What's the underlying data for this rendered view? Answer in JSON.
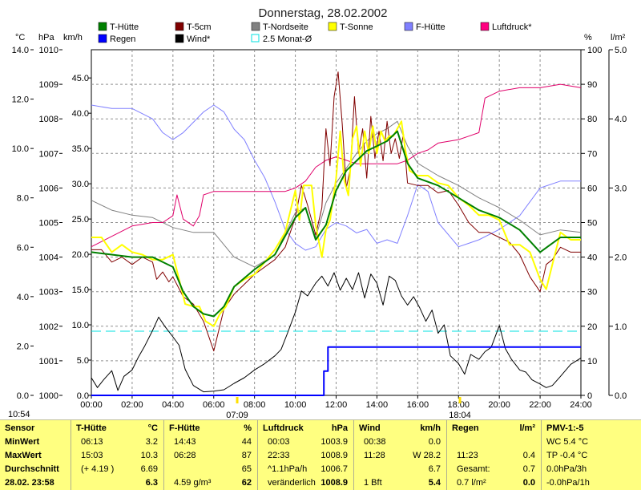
{
  "chart_data": {
    "type": "line",
    "title": "Donnerstag, 28.02.2002",
    "x_ticks": [
      "00:00",
      "02:00",
      "04:00",
      "06:00",
      "08:00",
      "10:00",
      "12:00",
      "14:00",
      "16:00",
      "18:00",
      "20:00",
      "22:00",
      "24:00"
    ],
    "xlim": [
      0,
      24
    ],
    "axes": {
      "temp": {
        "unit": "°C",
        "range": [
          0,
          14
        ],
        "ticks": [
          "0.0",
          "2.0",
          "4.0",
          "6.0",
          "8.0",
          "10.0",
          "12.0",
          "14.0"
        ]
      },
      "pressure": {
        "unit": "hPa",
        "range": [
          1000,
          1010
        ],
        "ticks": [
          "1000",
          "1001",
          "1002",
          "1003",
          "1004",
          "1005",
          "1006",
          "1007",
          "1008",
          "1009",
          "1010"
        ]
      },
      "wind": {
        "unit": "km/h",
        "range": [
          0,
          49
        ],
        "ticks": [
          "0.0",
          "5.0",
          "10.0",
          "15.0",
          "20.0",
          "25.0",
          "30.0",
          "35.0",
          "40.0",
          "45.0"
        ]
      },
      "humidity": {
        "unit": "%",
        "range": [
          0,
          100
        ],
        "ticks": [
          "0",
          "10",
          "20",
          "30",
          "40",
          "50",
          "60",
          "70",
          "80",
          "90",
          "100"
        ]
      },
      "rain": {
        "unit": "l/m²",
        "range": [
          0,
          5
        ],
        "ticks": [
          "0.0",
          "1.0",
          "2.0",
          "3.0",
          "4.0",
          "5.0"
        ]
      }
    },
    "legend": [
      {
        "name": "T-Hütte",
        "color": "#008000",
        "shape": "box"
      },
      {
        "name": "T-5cm",
        "color": "#800000",
        "shape": "box"
      },
      {
        "name": "T-Nordseite",
        "color": "#808080",
        "shape": "box"
      },
      {
        "name": "T-Sonne",
        "color": "#ffff00",
        "shape": "box"
      },
      {
        "name": "F-Hütte",
        "color": "#8080ff",
        "shape": "box"
      },
      {
        "name": "Luftdruck*",
        "color": "#ff0080",
        "shape": "box"
      },
      {
        "name": "Regen",
        "color": "#0000ff",
        "shape": "box"
      },
      {
        "name": "Wind*",
        "color": "#000000",
        "shape": "box"
      },
      {
        "name": "2.5 Monat-Ø",
        "color": "#00e0e0",
        "shape": "outline"
      }
    ],
    "series": [
      {
        "name": "T-Hütte",
        "axis": "temp",
        "color": "#008000",
        "width": 2,
        "x": [
          0,
          1,
          2,
          3,
          4,
          4.5,
          5,
          5.5,
          6,
          6.5,
          7,
          8,
          9,
          10,
          10.5,
          11,
          11.5,
          12,
          12.5,
          13,
          13.5,
          14,
          14.5,
          15,
          15.5,
          16,
          17,
          18,
          19,
          20,
          21,
          22,
          22.5,
          23,
          24
        ],
        "y": [
          5.8,
          5.7,
          5.6,
          5.6,
          5.2,
          4.2,
          3.6,
          3.3,
          3.2,
          3.6,
          4.4,
          5.1,
          5.7,
          7.2,
          7.6,
          6.3,
          6.9,
          8.3,
          9.1,
          9.5,
          9.9,
          10.1,
          10.3,
          10.7,
          9.4,
          8.8,
          8.5,
          8.0,
          7.5,
          7.2,
          6.7,
          5.8,
          6.1,
          6.4,
          6.4
        ]
      },
      {
        "name": "T-5cm",
        "axis": "temp",
        "color": "#800000",
        "width": 1,
        "x": [
          0,
          0.5,
          1,
          1.5,
          2,
          2.5,
          3,
          3.2,
          3.5,
          3.8,
          4,
          4.5,
          5,
          5.5,
          6,
          6.5,
          7,
          7.5,
          8,
          9,
          9.5,
          10,
          10.3,
          10.6,
          11,
          11.3,
          11.5,
          11.7,
          11.9,
          12.1,
          12.3,
          12.5,
          12.7,
          12.9,
          13.1,
          13.3,
          13.5,
          13.7,
          13.9,
          14.1,
          14.3,
          14.5,
          14.7,
          14.9,
          15.1,
          15.3,
          15.5,
          16,
          16.5,
          17,
          17.5,
          18,
          18.5,
          19,
          19.5,
          20,
          20.5,
          21,
          21.5,
          22,
          22.3,
          22.6,
          23,
          23.5,
          24
        ],
        "y": [
          5.9,
          5.9,
          5.4,
          5.6,
          5.3,
          5.6,
          5.4,
          4.7,
          5.0,
          4.6,
          4.8,
          4.0,
          3.7,
          3.0,
          1.8,
          3.5,
          4.1,
          4.5,
          4.9,
          5.5,
          6.0,
          7.2,
          8.5,
          7.7,
          6.5,
          7.6,
          10.8,
          9.3,
          12.1,
          13.1,
          11.0,
          8.4,
          9.2,
          12.1,
          9.8,
          10.8,
          8.8,
          11.3,
          9.6,
          10.7,
          9.5,
          11.1,
          9.8,
          10.4,
          9.6,
          10.6,
          8.6,
          8.5,
          8.5,
          8.2,
          8.3,
          7.7,
          7.0,
          6.6,
          6.6,
          6.4,
          6.2,
          5.7,
          4.8,
          4.2,
          5.3,
          5.5,
          6.0,
          5.8,
          5.8
        ]
      },
      {
        "name": "T-Nordseite",
        "axis": "temp",
        "color": "#808080",
        "width": 1,
        "x": [
          0,
          1,
          2,
          3,
          4,
          5,
          6,
          7,
          8,
          9,
          10,
          10.5,
          11,
          11.5,
          12,
          12.5,
          13,
          13.5,
          14,
          14.5,
          15,
          15.5,
          16,
          17,
          18,
          19,
          20,
          21,
          22,
          23,
          24
        ],
        "y": [
          7.9,
          7.5,
          7.3,
          7.2,
          6.8,
          6.6,
          6.6,
          5.6,
          5.2,
          5.7,
          7.4,
          7.6,
          6.4,
          7.8,
          8.6,
          9.2,
          9.8,
          10.3,
          10.6,
          10.8,
          11.1,
          10.1,
          9.4,
          8.9,
          8.5,
          8.0,
          7.6,
          7.1,
          6.5,
          6.7,
          6.6
        ]
      },
      {
        "name": "T-Sonne",
        "axis": "temp",
        "color": "#ffff00",
        "width": 2,
        "x": [
          0,
          0.5,
          1,
          1.5,
          2,
          2.5,
          3,
          3.5,
          4,
          4.3,
          4.6,
          5,
          5.3,
          5.6,
          6,
          6.3,
          6.6,
          7,
          7.5,
          8,
          8.5,
          9,
          9.5,
          10,
          10.2,
          10.4,
          10.6,
          10.8,
          11,
          11.3,
          11.5,
          11.7,
          12,
          12.2,
          12.4,
          12.6,
          12.8,
          13,
          13.2,
          13.4,
          13.6,
          13.8,
          14,
          14.2,
          14.4,
          14.6,
          14.8,
          15,
          15.2,
          15.4,
          15.6,
          16,
          16.5,
          17,
          17.5,
          18,
          18.5,
          19,
          19.5,
          20,
          20.5,
          21,
          21.5,
          22,
          22.3,
          22.6,
          23,
          23.5,
          24
        ],
        "y": [
          6.4,
          6.4,
          5.8,
          6.1,
          5.8,
          5.7,
          5.5,
          5.5,
          5.7,
          4.7,
          3.7,
          3.6,
          3.6,
          3.0,
          2.8,
          3.3,
          3.6,
          4.4,
          4.7,
          4.9,
          5.4,
          5.9,
          6.6,
          8.3,
          7.1,
          8.5,
          8.5,
          8.5,
          6.9,
          5.6,
          6.7,
          7.1,
          8.8,
          10.7,
          8.7,
          8.1,
          10.4,
          10.9,
          9.3,
          10.7,
          9.8,
          10.9,
          9.8,
          10.7,
          10.3,
          10.5,
          10.5,
          10.8,
          11.1,
          9.9,
          9.1,
          8.9,
          8.9,
          8.6,
          8.5,
          8.0,
          7.7,
          7.3,
          7.3,
          7.1,
          6.1,
          6.1,
          5.8,
          4.7,
          4.3,
          5.3,
          6.6,
          6.3,
          6.3
        ]
      },
      {
        "name": "F-Hütte",
        "axis": "humidity",
        "color": "#8080ff",
        "width": 1,
        "x": [
          0,
          1,
          2,
          3,
          3.5,
          4,
          4.5,
          5,
          5.5,
          6,
          6.5,
          7,
          7.5,
          8,
          8.5,
          9,
          9.5,
          10,
          10.5,
          11,
          11.5,
          12,
          12.5,
          13,
          13.5,
          14,
          14.5,
          15,
          15.5,
          16,
          16.5,
          17,
          18,
          18.5,
          19,
          20,
          21,
          22,
          23,
          24
        ],
        "y": [
          84,
          83,
          83,
          80,
          76,
          74,
          76,
          79,
          82,
          84,
          82,
          77,
          74,
          68,
          63,
          56,
          48,
          44,
          42,
          43,
          48,
          50,
          49,
          47,
          48,
          44,
          45,
          44,
          52,
          61,
          59,
          50,
          43,
          44,
          45,
          48,
          52,
          60,
          62,
          62
        ]
      },
      {
        "name": "Luftdruck*",
        "axis": "pressure",
        "color": "#e0006a",
        "width": 1,
        "x": [
          0,
          1,
          2,
          3,
          3.5,
          4,
          4.2,
          4.5,
          5,
          5.3,
          5.5,
          6,
          6.5,
          7,
          8,
          9,
          9.5,
          10,
          10.5,
          11,
          11.5,
          12,
          12.5,
          13,
          13.5,
          14,
          15,
          15.5,
          16,
          16.5,
          17,
          18,
          18.5,
          19,
          19.3,
          20,
          21,
          22,
          23,
          24
        ],
        "y": [
          1004.3,
          1004.6,
          1004.9,
          1005.0,
          1005.0,
          1005.2,
          1005.8,
          1005.1,
          1004.9,
          1005.2,
          1005.8,
          1005.9,
          1005.9,
          1005.9,
          1005.9,
          1005.9,
          1005.9,
          1006.0,
          1006.2,
          1006.6,
          1006.8,
          1006.9,
          1006.8,
          1006.7,
          1006.7,
          1006.7,
          1006.7,
          1006.8,
          1007.0,
          1007.1,
          1007.3,
          1007.4,
          1007.5,
          1007.6,
          1008.6,
          1008.8,
          1008.9,
          1008.9,
          1009.0,
          1008.9
        ]
      },
      {
        "name": "Wind*",
        "axis": "wind",
        "color": "#000000",
        "width": 1,
        "x": [
          0,
          0.3,
          0.6,
          1,
          1.3,
          1.6,
          2,
          2.3,
          2.6,
          3,
          3.3,
          3.6,
          4,
          4.3,
          4.6,
          5,
          5.5,
          6,
          6.5,
          7,
          7.5,
          8,
          8.5,
          9,
          9.3,
          9.6,
          10,
          10.3,
          10.6,
          11,
          11.3,
          11.6,
          11.9,
          12.2,
          12.5,
          12.8,
          13.1,
          13.4,
          13.7,
          14,
          14.3,
          14.6,
          14.9,
          15.2,
          15.5,
          15.8,
          16.1,
          16.4,
          16.7,
          17,
          17.3,
          17.6,
          18,
          18.3,
          18.6,
          19,
          19.3,
          19.6,
          20,
          20.3,
          20.6,
          21,
          21.3,
          21.6,
          22,
          22.3,
          22.6,
          23,
          23.5,
          24
        ],
        "y": [
          2.5,
          1.1,
          2.2,
          3.5,
          0.7,
          2.7,
          3.6,
          5.4,
          6.9,
          9.2,
          11.1,
          9.8,
          8.3,
          7.1,
          3.7,
          1.4,
          0.5,
          0.6,
          0.8,
          1.7,
          2.5,
          3.6,
          4.5,
          5.6,
          6.5,
          8.7,
          11.8,
          14.8,
          14.1,
          15.9,
          16.9,
          15.5,
          17.4,
          14.9,
          16.6,
          15.0,
          17.4,
          13.8,
          17.2,
          15.9,
          12.8,
          16.9,
          16.3,
          14.1,
          12.8,
          14.0,
          12.4,
          10.5,
          12.1,
          8.8,
          10.0,
          5.6,
          4.5,
          3.0,
          5.8,
          5.1,
          6.2,
          6.8,
          9.9,
          6.6,
          5.1,
          3.6,
          3.3,
          2.2,
          1.6,
          1.1,
          1.4,
          2.7,
          4.4,
          5.3
        ]
      },
      {
        "name": "Regen",
        "axis": "rain",
        "color": "#0000ff",
        "width": 2,
        "step": true,
        "x": [
          0,
          11.4,
          11.4,
          11.6,
          11.6,
          24
        ],
        "y": [
          0,
          0,
          0.35,
          0.35,
          0.7,
          0.7
        ]
      },
      {
        "name": "2.5 Monat-Ø",
        "axis": "temp",
        "color": "#00e0e0",
        "width": 1,
        "dash": "12,6",
        "x": [
          0,
          24
        ],
        "y": [
          2.6,
          2.6
        ]
      }
    ],
    "markers": [
      {
        "label": "07:09",
        "x": 7.15,
        "color": "#ffe000"
      },
      {
        "label": "18:04",
        "x": 18.07,
        "color": "#ffe000"
      }
    ],
    "timestamp": "10:54",
    "grid": "dashed"
  },
  "table": {
    "columns": [
      {
        "name": "sensor",
        "header": "Sensor",
        "rows": [
          {
            "label": "MinWert"
          },
          {
            "label": "MaxWert"
          },
          {
            "label": "Durchschnitt"
          },
          {
            "label": "28.02. 23:58"
          }
        ]
      },
      {
        "name": "t-huette",
        "header": "T-Hütte",
        "unit": "°C",
        "rows": [
          {
            "time": "06:13",
            "value": "3.2"
          },
          {
            "time": "15:03",
            "value": "10.3"
          },
          {
            "time": "(+ 4.19 )",
            "value": "6.69"
          },
          {
            "time": "",
            "value": "6.3"
          }
        ]
      },
      {
        "name": "f-huette",
        "header": "F-Hütte",
        "unit": "%",
        "rows": [
          {
            "time": "14:43",
            "value": "44"
          },
          {
            "time": "06:28",
            "value": "87"
          },
          {
            "time": "",
            "value": "65"
          },
          {
            "time": "4.59 g/m³",
            "value": "62"
          }
        ]
      },
      {
        "name": "luftdruck",
        "header": "Luftdruck",
        "unit": "hPa",
        "rows": [
          {
            "time": "00:03",
            "value": "1003.9"
          },
          {
            "time": "22:33",
            "value": "1008.9"
          },
          {
            "time": "^1.1hPa/h",
            "value": "1006.7"
          },
          {
            "time": "veränderlich",
            "value": "1008.9"
          }
        ]
      },
      {
        "name": "wind",
        "header": "Wind",
        "unit": "km/h",
        "rows": [
          {
            "time": "00:38",
            "value": "0.0"
          },
          {
            "time": "11:28",
            "value": "W 28.2"
          },
          {
            "time": "",
            "value": "6.7"
          },
          {
            "time": "1 Bft",
            "value": "5.4"
          }
        ]
      },
      {
        "name": "regen",
        "header": "Regen",
        "unit": "l/m²",
        "rows": [
          {
            "time": "",
            "value": ""
          },
          {
            "time": "11:23",
            "value": "0.4"
          },
          {
            "time": "Gesamt:",
            "value": "0.7"
          },
          {
            "time": "0.7 l/m²",
            "value": "0.0"
          }
        ]
      },
      {
        "name": "pmv",
        "header": "PMV-1:-5",
        "rows": [
          {
            "label": "WC 5.4 °C"
          },
          {
            "label": "TP -0.4 °C"
          },
          {
            "label": "0.0hPa/3h"
          },
          {
            "label": "-0.0hPa/1h"
          }
        ]
      }
    ]
  }
}
